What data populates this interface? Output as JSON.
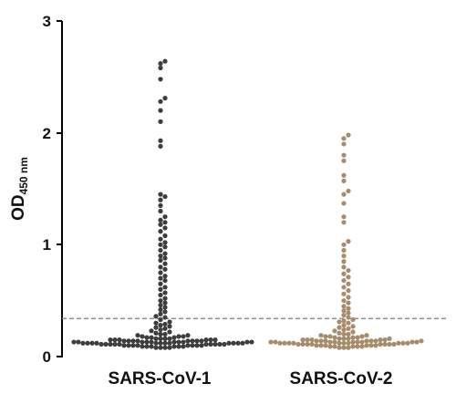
{
  "chart_data": {
    "type": "scatter",
    "subtype": "beeswarm",
    "title": "",
    "ylabel": "OD",
    "ylabel_subscript": "450 nm",
    "ylim": [
      0,
      3
    ],
    "yticks": [
      "0",
      "1",
      "2",
      "3"
    ],
    "grid": false,
    "legend": "none",
    "cutoff": 0.34,
    "categories": [
      "SARS-CoV-1",
      "SARS-CoV-2"
    ],
    "series": [
      {
        "color": "#3d3d3d",
        "values": [
          0.08,
          0.08,
          0.08,
          0.08,
          0.09,
          0.09,
          0.09,
          0.09,
          0.09,
          0.09,
          0.1,
          0.1,
          0.1,
          0.1,
          0.1,
          0.1,
          0.1,
          0.1,
          0.11,
          0.11,
          0.11,
          0.11,
          0.11,
          0.11,
          0.11,
          0.11,
          0.11,
          0.11,
          0.12,
          0.12,
          0.12,
          0.12,
          0.12,
          0.12,
          0.12,
          0.12,
          0.12,
          0.12,
          0.12,
          0.12,
          0.13,
          0.13,
          0.13,
          0.13,
          0.13,
          0.13,
          0.13,
          0.13,
          0.13,
          0.13,
          0.14,
          0.14,
          0.14,
          0.14,
          0.14,
          0.14,
          0.14,
          0.14,
          0.15,
          0.15,
          0.15,
          0.15,
          0.15,
          0.15,
          0.16,
          0.16,
          0.16,
          0.16,
          0.17,
          0.17,
          0.17,
          0.18,
          0.18,
          0.18,
          0.19,
          0.19,
          0.2,
          0.2,
          0.21,
          0.22,
          0.23,
          0.24,
          0.25,
          0.26,
          0.27,
          0.28,
          0.29,
          0.3,
          0.31,
          0.33,
          0.35,
          0.36,
          0.38,
          0.4,
          0.42,
          0.44,
          0.46,
          0.48,
          0.5,
          0.52,
          0.55,
          0.57,
          0.6,
          0.62,
          0.65,
          0.68,
          0.7,
          0.72,
          0.75,
          0.78,
          0.8,
          0.83,
          0.86,
          0.88,
          0.9,
          0.92,
          0.95,
          0.98,
          1.0,
          1.02,
          1.05,
          1.08,
          1.12,
          1.15,
          1.18,
          1.2,
          1.22,
          1.25,
          1.3,
          1.35,
          1.4,
          1.43,
          1.45,
          1.88,
          1.93,
          2.1,
          2.2,
          2.28,
          2.31,
          2.48,
          2.58,
          2.62,
          2.64
        ]
      },
      {
        "color": "#a88a6d",
        "values": [
          0.08,
          0.08,
          0.08,
          0.09,
          0.09,
          0.09,
          0.09,
          0.09,
          0.1,
          0.1,
          0.1,
          0.1,
          0.1,
          0.1,
          0.11,
          0.11,
          0.11,
          0.11,
          0.11,
          0.11,
          0.11,
          0.11,
          0.12,
          0.12,
          0.12,
          0.12,
          0.12,
          0.12,
          0.12,
          0.12,
          0.12,
          0.12,
          0.13,
          0.13,
          0.13,
          0.13,
          0.13,
          0.13,
          0.13,
          0.13,
          0.13,
          0.14,
          0.14,
          0.14,
          0.14,
          0.14,
          0.14,
          0.14,
          0.15,
          0.15,
          0.15,
          0.15,
          0.15,
          0.16,
          0.16,
          0.16,
          0.16,
          0.17,
          0.17,
          0.17,
          0.18,
          0.18,
          0.18,
          0.19,
          0.19,
          0.2,
          0.2,
          0.21,
          0.22,
          0.23,
          0.24,
          0.25,
          0.26,
          0.27,
          0.28,
          0.3,
          0.31,
          0.32,
          0.33,
          0.35,
          0.37,
          0.39,
          0.41,
          0.43,
          0.45,
          0.48,
          0.5,
          0.53,
          0.56,
          0.59,
          0.62,
          0.65,
          0.68,
          0.71,
          0.74,
          0.77,
          0.8,
          0.85,
          0.9,
          0.95,
          1.0,
          1.03,
          1.2,
          1.25,
          1.37,
          1.45,
          1.48,
          1.57,
          1.62,
          1.75,
          1.8,
          1.9,
          1.95,
          1.98
        ]
      }
    ]
  }
}
